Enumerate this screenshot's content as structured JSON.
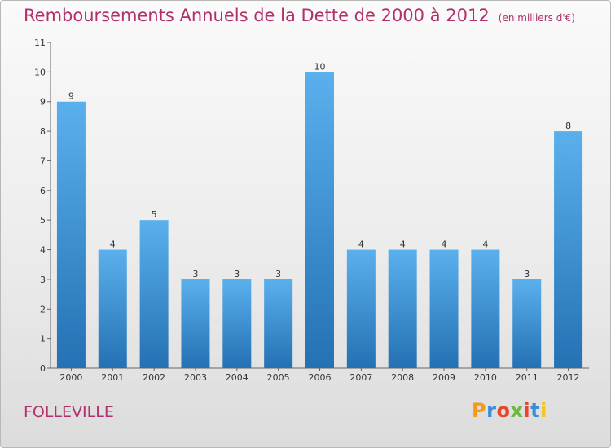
{
  "header": {
    "title": "Remboursements Annuels de la Dette de 2000 à 2012",
    "unit": "(en milliers d'€)"
  },
  "footer": {
    "city": "FOLLEVILLE",
    "logo": "Proxiti"
  },
  "colors": {
    "title": "#b1306b",
    "bar_top": "#5ab0ec",
    "bar_bottom": "#2471b4"
  },
  "chart_data": {
    "type": "bar",
    "title": "Remboursements Annuels de la Dette de 2000 à 2012",
    "subtitle": "(en milliers d'€)",
    "categories": [
      "2000",
      "2001",
      "2002",
      "2003",
      "2004",
      "2005",
      "2006",
      "2007",
      "2008",
      "2009",
      "2010",
      "2011",
      "2012"
    ],
    "values": [
      9,
      4,
      5,
      3,
      3,
      3,
      10,
      4,
      4,
      4,
      4,
      3,
      8
    ],
    "ylim": [
      0,
      11
    ],
    "yticks": [
      0,
      1,
      2,
      3,
      4,
      5,
      6,
      7,
      8,
      9,
      10,
      11
    ],
    "grid": false,
    "legend": "none"
  }
}
